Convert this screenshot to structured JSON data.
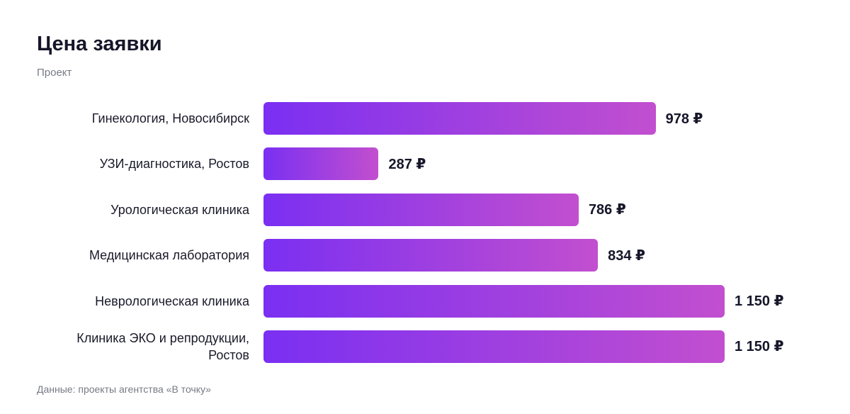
{
  "chart_data": {
    "type": "bar",
    "title": "Цена заявки",
    "subtitle": "Проект",
    "categories": [
      "Гинекология, Новосибирск",
      "УЗИ-диагностика, Ростов",
      "Урологическая клиника",
      "Медицинская лаборатория",
      "Неврологическая клиника",
      "Клиника ЭКО и репродукции, Ростов"
    ],
    "values": [
      978,
      287,
      786,
      834,
      1150,
      1150
    ],
    "value_labels": [
      "978 ₽",
      "287 ₽",
      "786 ₽",
      "834 ₽",
      "1 150 ₽",
      "1 150 ₽"
    ],
    "colors": [
      "#7a2ff2",
      "#c24fcf"
    ],
    "source": "Данные: проекты агентства «В точку»"
  }
}
